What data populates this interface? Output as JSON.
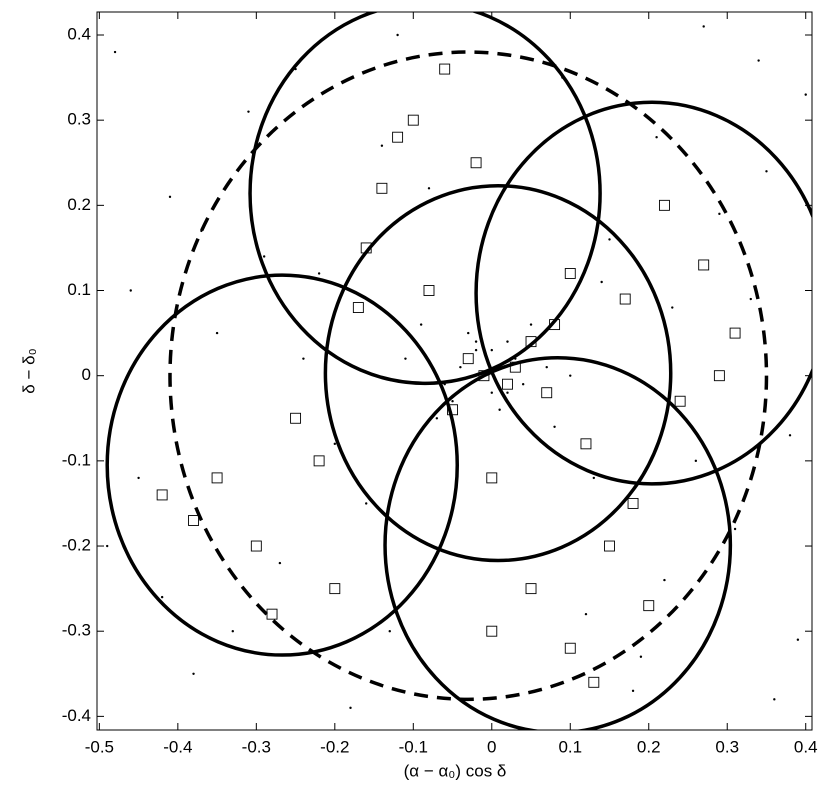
{
  "chart_data": {
    "type": "scatter",
    "xlabel": "(α − α₀) cos δ",
    "ylabel": "δ − δ₀",
    "xlim": [
      -0.503,
      0.408
    ],
    "ylim": [
      -0.416,
      0.427
    ],
    "xticks": [
      -0.5,
      -0.4,
      -0.3,
      -0.2,
      -0.1,
      0,
      0.1,
      0.2,
      0.3,
      0.4
    ],
    "yticks": [
      -0.4,
      -0.3,
      -0.2,
      -0.1,
      0,
      0.1,
      0.2,
      0.3,
      0.4
    ],
    "color": "#000000",
    "series": [
      {
        "marker": "dot",
        "x": [
          -0.48,
          -0.45,
          -0.41,
          -0.38,
          -0.35,
          -0.31,
          -0.27,
          -0.22,
          -0.18,
          -0.14,
          -0.11,
          -0.07,
          -0.04,
          -0.02,
          0,
          0.02,
          0.04,
          0.06,
          0.09,
          0.12,
          0.15,
          0.19,
          0.23,
          0.27,
          0.31,
          0.35,
          0.38,
          0.4,
          -0.46,
          -0.33,
          -0.25,
          -0.16,
          -0.09,
          -0.05,
          -0.03,
          -0.01,
          0.01,
          0.03,
          0.05,
          0.08,
          0.14,
          0.22,
          0.29,
          0.36,
          -0.42,
          -0.29,
          -0.2,
          -0.12,
          -0.06,
          0.0,
          0.07,
          0.13,
          0.21,
          0.33,
          0.39,
          -0.49,
          -0.37,
          -0.24,
          -0.13,
          -0.08,
          -0.02,
          0.02,
          0.1,
          0.18,
          0.26,
          0.34
        ],
        "y": [
          0.38,
          -0.12,
          0.21,
          -0.35,
          0.05,
          0.31,
          -0.22,
          0.12,
          -0.39,
          0.27,
          0.02,
          -0.05,
          0.01,
          0.03,
          -0.02,
          0.04,
          -0.01,
          0.02,
          0.35,
          -0.28,
          0.16,
          -0.33,
          0.08,
          0.41,
          -0.18,
          0.24,
          -0.07,
          0.33,
          0.1,
          -0.3,
          0.36,
          -0.15,
          0.06,
          -0.03,
          0.05,
          0.0,
          -0.04,
          0.02,
          0.06,
          -0.06,
          0.11,
          -0.24,
          0.19,
          -0.38,
          -0.26,
          0.14,
          -0.08,
          0.4,
          -0.01,
          0.03,
          0.01,
          -0.12,
          0.28,
          0.09,
          -0.31,
          -0.2,
          0.17,
          0.02,
          -0.3,
          0.22,
          0.04,
          -0.02,
          0.0,
          -0.37,
          -0.1,
          0.37
        ]
      },
      {
        "marker": "square",
        "x": [
          -0.1,
          -0.14,
          -0.06,
          -0.02,
          -0.16,
          0.22,
          0.27,
          0.31,
          0.17,
          0.24,
          -0.03,
          0.02,
          0.05,
          -0.05,
          0.08,
          0.12,
          -0.08,
          0.0,
          -0.35,
          -0.3,
          -0.25,
          -0.2,
          -0.38,
          -0.28,
          0.05,
          0.1,
          0.15,
          0.2,
          0.0,
          0.13,
          -0.12,
          -0.17,
          0.1,
          0.29,
          -0.42,
          -0.22,
          0.18,
          0.03,
          -0.01,
          0.07
        ],
        "y": [
          0.3,
          0.22,
          0.36,
          0.25,
          0.15,
          0.2,
          0.13,
          0.05,
          0.09,
          -0.03,
          0.02,
          -0.01,
          0.04,
          -0.04,
          0.06,
          -0.08,
          0.1,
          -0.12,
          -0.12,
          -0.2,
          -0.05,
          -0.25,
          -0.17,
          -0.28,
          -0.25,
          -0.32,
          -0.2,
          -0.27,
          -0.3,
          -0.36,
          0.28,
          0.08,
          0.12,
          0.0,
          -0.14,
          -0.1,
          -0.15,
          0.01,
          0.0,
          -0.02
        ]
      }
    ],
    "circles": [
      {
        "x": -0.085,
        "y": 0.214,
        "r": 0.223
      },
      {
        "x": 0.204,
        "y": 0.097,
        "r": 0.224
      },
      {
        "x": 0.008,
        "y": 0.003,
        "r": 0.22
      },
      {
        "x": -0.267,
        "y": -0.105,
        "r": 0.223
      },
      {
        "x": 0.084,
        "y": -0.199,
        "r": 0.22
      }
    ],
    "dashed_circle": {
      "x": -0.03,
      "y": 0.0,
      "r": 0.38
    }
  }
}
